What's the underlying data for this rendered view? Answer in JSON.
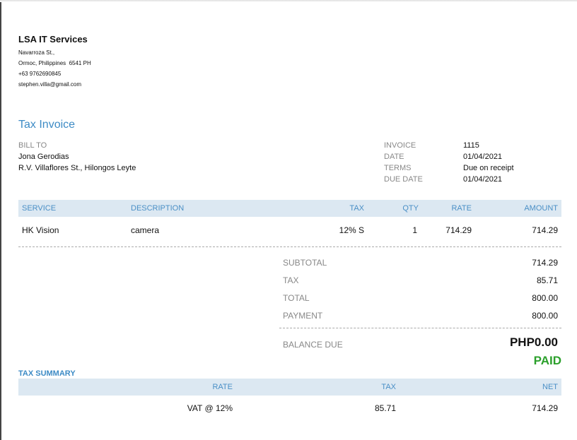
{
  "company": {
    "name": "LSA IT Services",
    "address1": "Navarroza St.,",
    "address2": "Ormoc, Philippines  6541 PH",
    "phone": "+63 9762690845",
    "email": "stephen.villa@gmail.com"
  },
  "title": "Tax Invoice",
  "bill_to": {
    "label": "BILL TO",
    "name": "Jona Gerodias",
    "address": "R.V. Villaflores St., Hilongos Leyte"
  },
  "meta": [
    {
      "label": "INVOICE",
      "value": "1115"
    },
    {
      "label": "DATE",
      "value": "01/04/2021"
    },
    {
      "label": "TERMS",
      "value": "Due on receipt"
    },
    {
      "label": "DUE DATE",
      "value": "01/04/2021"
    }
  ],
  "table": {
    "headers": [
      "SERVICE",
      "DESCRIPTION",
      "TAX",
      "QTY",
      "RATE",
      "AMOUNT"
    ],
    "rows": [
      [
        "HK Vision",
        "camera",
        "12% S",
        "1",
        "714.29",
        "714.29"
      ]
    ]
  },
  "totals": [
    {
      "label": "SUBTOTAL",
      "value": "714.29"
    },
    {
      "label": "TAX",
      "value": "85.71"
    },
    {
      "label": "TOTAL",
      "value": "800.00"
    },
    {
      "label": "PAYMENT",
      "value": "800.00"
    }
  ],
  "balance": {
    "label": "BALANCE DUE",
    "value": "PHP0.00",
    "status": "PAID"
  },
  "tax_summary": {
    "title": "TAX SUMMARY",
    "headers": [
      "RATE",
      "TAX",
      "NET"
    ],
    "row": [
      "VAT @ 12%",
      "85.71",
      "714.29"
    ]
  },
  "colors": {
    "accent": "#3d8bc5",
    "paid": "#2ca02c",
    "header_bg": "#dce8f2"
  }
}
